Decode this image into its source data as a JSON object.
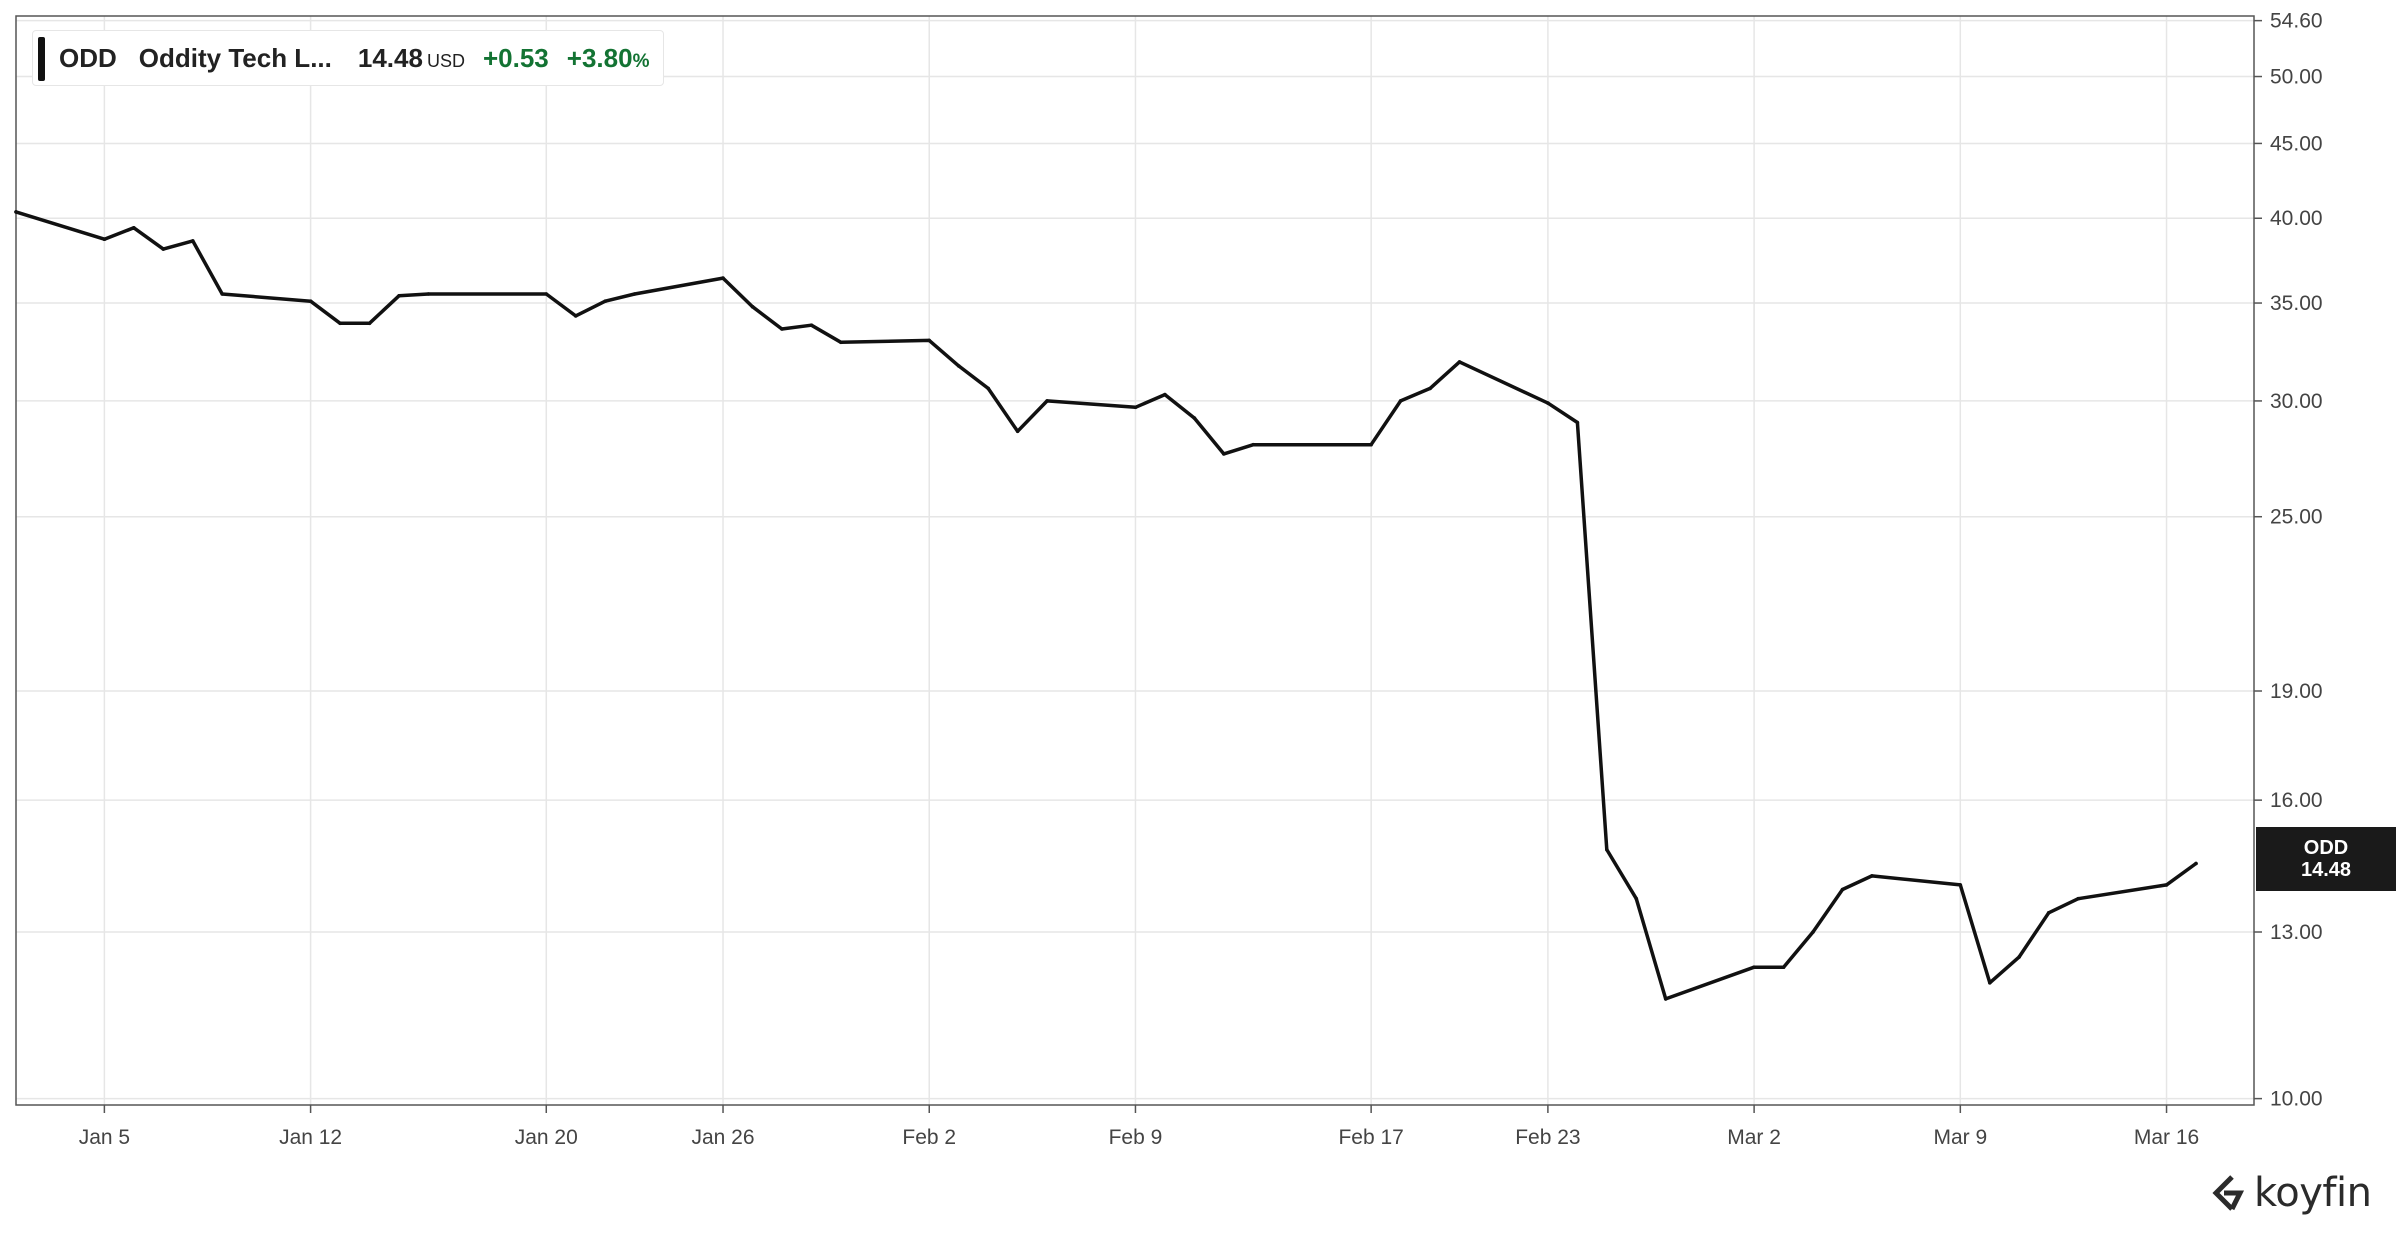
{
  "legend": {
    "ticker": "ODD",
    "name": "Oddity Tech L...",
    "price": "14.48",
    "currency": "USD",
    "change": "+0.53",
    "change_pct": "+3.80",
    "change_pct_sign": "%"
  },
  "price_tag": {
    "ticker": "ODD",
    "price": "14.48"
  },
  "brand": {
    "name": "koyfin"
  },
  "colors": {
    "line": "#111111",
    "positive": "#137333",
    "grid": "#e6e6e6",
    "axis": "#555555"
  },
  "chart_data": {
    "type": "line",
    "y_scale": "log",
    "ylim": [
      9.9,
      55.0
    ],
    "y_ticks": [
      10.0,
      13.0,
      16.0,
      19.0,
      25.0,
      30.0,
      35.0,
      40.0,
      45.0,
      50.0,
      54.6
    ],
    "y_tick_labels": [
      "10.00",
      "13.00",
      "16.00",
      "19.00",
      "25.00",
      "30.00",
      "35.00",
      "40.00",
      "45.00",
      "50.00",
      "54.60"
    ],
    "x_ticks": [
      "Jan 5",
      "Jan 12",
      "Jan 20",
      "Jan 26",
      "Feb 2",
      "Feb 9",
      "Feb 17",
      "Feb 23",
      "Mar 2",
      "Mar 9",
      "Mar 16"
    ],
    "x_dates": [
      "2026-01-02",
      "2026-01-05",
      "2026-01-06",
      "2026-01-07",
      "2026-01-08",
      "2026-01-09",
      "2026-01-12",
      "2026-01-13",
      "2026-01-14",
      "2026-01-15",
      "2026-01-16",
      "2026-01-20",
      "2026-01-21",
      "2026-01-22",
      "2026-01-23",
      "2026-01-26",
      "2026-01-27",
      "2026-01-28",
      "2026-01-29",
      "2026-01-30",
      "2026-02-02",
      "2026-02-03",
      "2026-02-04",
      "2026-02-05",
      "2026-02-06",
      "2026-02-09",
      "2026-02-10",
      "2026-02-11",
      "2026-02-12",
      "2026-02-13",
      "2026-02-17",
      "2026-02-18",
      "2026-02-19",
      "2026-02-20",
      "2026-02-23",
      "2026-02-24",
      "2026-02-25",
      "2026-02-26",
      "2026-02-27",
      "2026-03-02",
      "2026-03-03",
      "2026-03-04",
      "2026-03-05",
      "2026-03-06",
      "2026-03-09",
      "2026-03-10",
      "2026-03-11",
      "2026-03-12",
      "2026-03-13",
      "2026-03-16",
      "2026-03-17"
    ],
    "series": [
      {
        "name": "ODD",
        "values": [
          40.4,
          38.7,
          39.4,
          38.1,
          38.6,
          35.5,
          35.1,
          33.9,
          33.9,
          35.4,
          35.5,
          35.5,
          34.3,
          35.1,
          35.5,
          36.4,
          34.8,
          33.6,
          33.8,
          32.9,
          33.0,
          31.7,
          30.6,
          28.6,
          30.0,
          29.7,
          30.3,
          29.2,
          27.6,
          28.0,
          28.0,
          30.0,
          30.6,
          31.9,
          29.9,
          29.0,
          14.8,
          13.7,
          11.7,
          12.3,
          12.3,
          13.0,
          13.9,
          14.2,
          14.0,
          12.0,
          12.5,
          13.4,
          13.7,
          14.0,
          14.48
        ]
      }
    ],
    "grid": true,
    "legend_position": "top-left"
  }
}
